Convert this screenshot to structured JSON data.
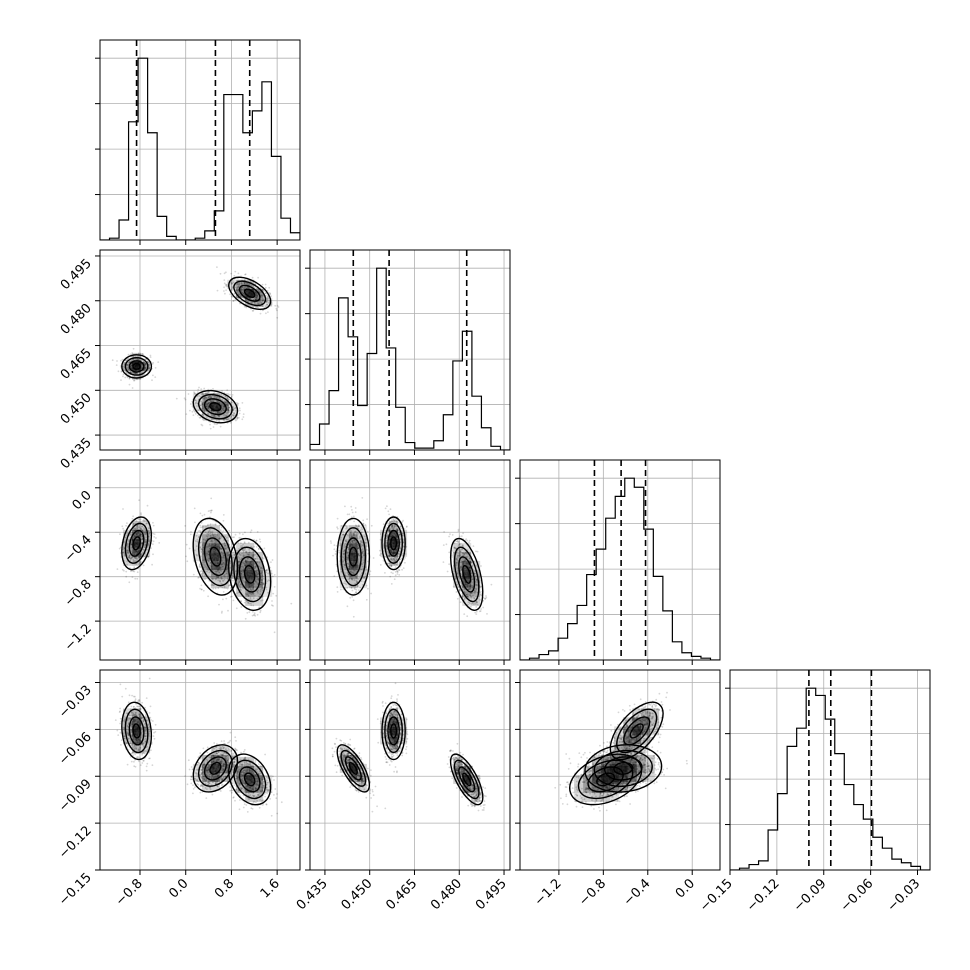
{
  "chart_data": {
    "type": "corner",
    "grid": true,
    "parameters": [
      {
        "range": [
          -1.5,
          2.0
        ],
        "ticks": [
          -0.8,
          0.0,
          0.8,
          1.6
        ],
        "tick_labels": [
          "−0.8",
          "0.0",
          "0.8",
          "1.6"
        ],
        "quantiles": [
          -0.86,
          0.52,
          1.12
        ],
        "hist": [
          0.0,
          0.01,
          0.11,
          0.65,
          1.0,
          0.59,
          0.13,
          0.02,
          0.0,
          0.0,
          0.01,
          0.05,
          0.16,
          0.8,
          0.8,
          0.59,
          0.71,
          0.87,
          0.46,
          0.12,
          0.04
        ],
        "modes": [
          {
            "w": 0.34,
            "mu": -0.86,
            "sd": 0.12
          },
          {
            "w": 0.33,
            "mu": 0.52,
            "sd": 0.18
          },
          {
            "w": 0.33,
            "mu": 1.12,
            "sd": 0.17
          }
        ]
      },
      {
        "range": [
          0.43,
          0.497
        ],
        "ticks": [
          0.435,
          0.45,
          0.465,
          0.48,
          0.495
        ],
        "tick_labels": [
          "0.435",
          "0.450",
          "0.465",
          "0.480",
          "0.495"
        ],
        "quantiles": [
          0.4445,
          0.4565,
          0.4825
        ],
        "hist": [
          0.03,
          0.14,
          0.32,
          0.82,
          0.61,
          0.24,
          0.52,
          0.98,
          0.55,
          0.23,
          0.04,
          0.01,
          0.01,
          0.05,
          0.19,
          0.48,
          0.64,
          0.29,
          0.12,
          0.02,
          0.0
        ],
        "modes": [
          {
            "w": 0.34,
            "mu": 0.458,
            "sd": 0.0018
          },
          {
            "w": 0.33,
            "mu": 0.4445,
            "sd": 0.0025
          },
          {
            "w": 0.33,
            "mu": 0.4825,
            "sd": 0.0025
          }
        ]
      },
      {
        "range": [
          -1.55,
          0.25
        ],
        "ticks": [
          -1.2,
          -0.8,
          -0.4,
          0.0
        ],
        "tick_labels": [
          "−1.2",
          "−0.8",
          "−0.4",
          "0.0"
        ],
        "quantiles": [
          -0.88,
          -0.64,
          -0.42
        ],
        "hist": [
          0.0,
          0.01,
          0.03,
          0.05,
          0.12,
          0.2,
          0.3,
          0.47,
          0.61,
          0.78,
          0.9,
          1.0,
          0.95,
          0.72,
          0.46,
          0.27,
          0.1,
          0.04,
          0.02,
          0.01,
          0.0
        ],
        "modes": [
          {
            "w": 0.34,
            "mu": -0.5,
            "sd": 0.11
          },
          {
            "w": 0.33,
            "mu": -0.62,
            "sd": 0.16
          },
          {
            "w": 0.33,
            "mu": -0.78,
            "sd": 0.15
          }
        ]
      },
      {
        "range": [
          -0.15,
          -0.022
        ],
        "ticks": [
          -0.15,
          -0.12,
          -0.09,
          -0.06,
          -0.03
        ],
        "tick_labels": [
          "−0.15",
          "−0.12",
          "−0.09",
          "−0.06",
          "−0.03"
        ],
        "quantiles": [
          -0.0995,
          -0.0855,
          -0.0595
        ],
        "hist": [
          0.0,
          0.01,
          0.03,
          0.05,
          0.22,
          0.42,
          0.68,
          0.78,
          1.0,
          0.96,
          0.83,
          0.64,
          0.47,
          0.36,
          0.28,
          0.18,
          0.12,
          0.06,
          0.04,
          0.02,
          0.0
        ],
        "modes": [
          {
            "w": 0.34,
            "mu": -0.061,
            "sd": 0.0085
          },
          {
            "w": 0.33,
            "mu": -0.085,
            "sd": 0.007
          },
          {
            "w": 0.33,
            "mu": -0.092,
            "sd": 0.0075
          }
        ]
      }
    ],
    "correlations": {
      "1_0": [
        0.0,
        -0.25,
        -0.5
      ],
      "2_0": [
        0.3,
        -0.3,
        -0.2
      ],
      "2_1": [
        0.0,
        0.0,
        -0.5
      ],
      "3_0": [
        -0.15,
        0.3,
        -0.3
      ],
      "3_1": [
        0.0,
        -0.7,
        -0.7
      ],
      "3_2": [
        0.6,
        0.1,
        0.35
      ]
    }
  }
}
